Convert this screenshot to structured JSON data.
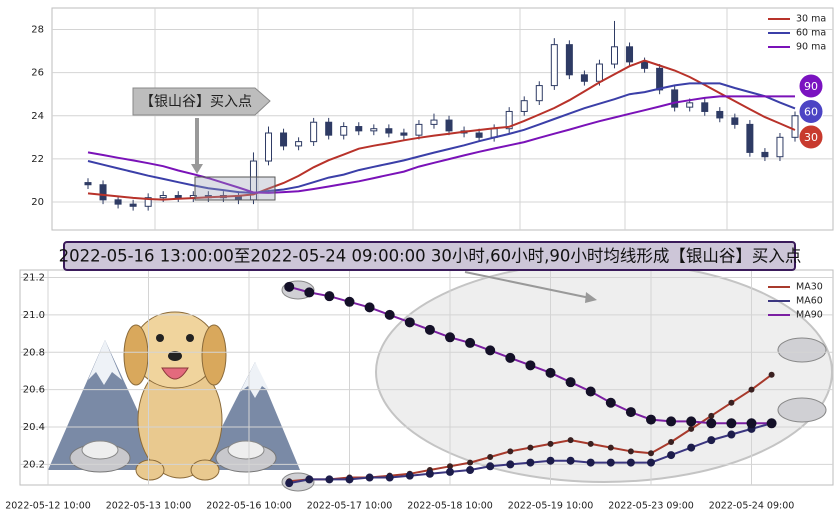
{
  "chart_data": [
    {
      "type": "candlestick",
      "annotation": "【银山谷】买入点",
      "color": "#2e3b64",
      "open": [
        20.9,
        20.8,
        20.1,
        19.9,
        19.8,
        20.2,
        20.3,
        20.2,
        20.3,
        20.2,
        20.3,
        20.1,
        21.9,
        23.2,
        22.6,
        22.8,
        23.7,
        23.1,
        23.5,
        23.3,
        23.4,
        23.2,
        23.1,
        23.6,
        23.8,
        23.3,
        23.2,
        23.0,
        23.4,
        24.2,
        24.7,
        25.4,
        27.3,
        25.9,
        25.6,
        26.4,
        27.2,
        26.5,
        26.2,
        25.2,
        24.4,
        24.6,
        24.2,
        23.9,
        23.6,
        22.3,
        22.1,
        23.0
      ],
      "high": [
        21.1,
        21.0,
        20.3,
        20.1,
        20.4,
        20.5,
        20.5,
        20.5,
        20.5,
        20.5,
        20.5,
        22.3,
        23.5,
        23.4,
        23.0,
        23.9,
        23.9,
        23.7,
        23.7,
        23.6,
        23.6,
        23.4,
        23.8,
        24.1,
        24.0,
        23.5,
        23.4,
        23.6,
        24.4,
        24.9,
        25.6,
        27.6,
        27.5,
        26.1,
        26.6,
        28.4,
        27.4,
        26.7,
        26.4,
        25.4,
        24.8,
        24.8,
        24.4,
        24.1,
        23.8,
        22.5,
        23.2,
        24.2
      ],
      "low": [
        20.6,
        19.9,
        19.7,
        19.6,
        19.6,
        20.0,
        20.0,
        20.0,
        20.0,
        20.0,
        19.9,
        19.9,
        21.7,
        22.4,
        22.4,
        22.6,
        22.9,
        22.9,
        23.1,
        23.1,
        23.0,
        22.9,
        22.9,
        23.4,
        23.1,
        23.0,
        22.8,
        22.8,
        23.2,
        24.0,
        24.5,
        25.2,
        25.7,
        25.4,
        25.4,
        26.2,
        26.3,
        26.0,
        25.0,
        24.2,
        24.2,
        24.0,
        23.7,
        23.4,
        22.1,
        21.9,
        21.9,
        22.8
      ],
      "close": [
        20.8,
        20.1,
        19.9,
        19.8,
        20.2,
        20.3,
        20.2,
        20.3,
        20.2,
        20.3,
        20.1,
        21.9,
        23.2,
        22.6,
        22.8,
        23.7,
        23.1,
        23.5,
        23.3,
        23.4,
        23.2,
        23.1,
        23.6,
        23.8,
        23.3,
        23.2,
        23.0,
        23.4,
        24.2,
        24.7,
        25.4,
        27.3,
        25.9,
        25.6,
        26.4,
        27.2,
        26.5,
        26.2,
        25.2,
        24.4,
        24.6,
        24.2,
        23.9,
        23.6,
        22.3,
        22.1,
        23.0,
        24.0
      ],
      "series": [
        {
          "name": "30 ma",
          "color": "#b8322a",
          "values": [
            20.4,
            20.33,
            20.26,
            20.19,
            20.14,
            20.11,
            20.15,
            20.18,
            20.22,
            20.25,
            20.28,
            20.35,
            20.62,
            20.88,
            21.21,
            21.61,
            21.94,
            22.2,
            22.47,
            22.61,
            22.73,
            22.86,
            22.98,
            23.08,
            23.17,
            23.26,
            23.34,
            23.42,
            23.49,
            23.76,
            24.06,
            24.36,
            24.72,
            25.13,
            25.55,
            25.93,
            26.3,
            26.56,
            26.33,
            26.1,
            25.8,
            25.43,
            25.05,
            24.68,
            24.3,
            23.94,
            23.64,
            23.34
          ]
        },
        {
          "name": "60 ma",
          "color": "#3b3fa8",
          "values": [
            21.9,
            21.73,
            21.56,
            21.39,
            21.22,
            21.07,
            20.92,
            20.77,
            20.64,
            20.55,
            20.46,
            20.42,
            20.51,
            20.58,
            20.71,
            20.92,
            21.13,
            21.27,
            21.48,
            21.63,
            21.78,
            21.93,
            22.11,
            22.29,
            22.46,
            22.63,
            22.82,
            22.99,
            23.16,
            23.35,
            23.6,
            23.85,
            24.1,
            24.35,
            24.56,
            24.77,
            25.0,
            25.1,
            25.26,
            25.41,
            25.5,
            25.5,
            25.5,
            25.29,
            25.1,
            24.91,
            24.61,
            24.34
          ]
        },
        {
          "name": "90 ma",
          "color": "#7a12b8",
          "values": [
            22.3,
            22.18,
            22.05,
            21.93,
            21.8,
            21.66,
            21.46,
            21.29,
            21.11,
            20.89,
            20.67,
            20.44,
            20.42,
            20.46,
            20.5,
            20.6,
            20.72,
            20.84,
            20.96,
            21.11,
            21.26,
            21.41,
            21.64,
            21.82,
            21.99,
            22.16,
            22.33,
            22.48,
            22.63,
            22.78,
            22.98,
            23.17,
            23.36,
            23.56,
            23.75,
            23.92,
            24.09,
            24.26,
            24.43,
            24.61,
            24.72,
            24.83,
            24.9,
            24.9,
            24.9,
            24.9,
            24.9,
            24.9
          ]
        }
      ],
      "badges": [
        {
          "label": "90",
          "color": "#7a12c0"
        },
        {
          "label": "60",
          "color": "#4c44c4"
        },
        {
          "label": "30",
          "color": "#c83a2e"
        }
      ],
      "ylim": [
        18.7,
        29.0
      ],
      "yticks": [
        20,
        22,
        24,
        26,
        28
      ],
      "grid": true
    },
    {
      "type": "line",
      "title": "2022-05-16 13:00:00至2022-05-24 09:00:00 30小时,60小时,90小时均线形成【银山谷】买入点",
      "categories": [
        "2022-05-12 10:00",
        null,
        null,
        null,
        null,
        "2022-05-13 10:00",
        null,
        null,
        null,
        null,
        "2022-05-16 10:00",
        null,
        null,
        null,
        null,
        "2022-05-17 10:00",
        null,
        null,
        null,
        null,
        "2022-05-18 10:00",
        null,
        null,
        null,
        null,
        "2022-05-19 10:00",
        null,
        null,
        null,
        null,
        "2022-05-23 09:00",
        null,
        null,
        null,
        null,
        "2022-05-24 09:00",
        null
      ],
      "series": [
        {
          "name": "MA30",
          "color": "#a83a2c",
          "values": [
            null,
            null,
            null,
            null,
            null,
            null,
            null,
            null,
            null,
            null,
            null,
            null,
            20.11,
            20.12,
            20.12,
            20.13,
            20.13,
            20.14,
            20.15,
            20.17,
            20.19,
            20.21,
            20.24,
            20.27,
            20.29,
            20.31,
            20.33,
            20.31,
            20.29,
            20.27,
            20.26,
            20.32,
            20.39,
            20.46,
            20.53,
            20.6,
            20.68
          ]
        },
        {
          "name": "MA60",
          "color": "#3b3680",
          "values": [
            null,
            null,
            null,
            null,
            null,
            null,
            null,
            null,
            null,
            null,
            null,
            null,
            20.1,
            20.12,
            20.12,
            20.12,
            20.13,
            20.13,
            20.14,
            20.15,
            20.16,
            20.17,
            20.19,
            20.2,
            20.21,
            20.22,
            20.22,
            20.21,
            20.21,
            20.21,
            20.21,
            20.25,
            20.29,
            20.33,
            20.36,
            20.39,
            20.42
          ]
        },
        {
          "name": "MA90",
          "color": "#7b1fa2",
          "values": [
            null,
            null,
            null,
            null,
            null,
            null,
            null,
            null,
            null,
            null,
            null,
            null,
            21.15,
            21.12,
            21.1,
            21.07,
            21.04,
            21.0,
            20.96,
            20.92,
            20.88,
            20.85,
            20.81,
            20.77,
            20.73,
            20.69,
            20.64,
            20.59,
            20.53,
            20.48,
            20.44,
            20.43,
            20.43,
            20.42,
            20.42,
            20.42,
            20.42
          ]
        }
      ],
      "ylim": [
        20.09,
        21.24
      ],
      "yticks": [
        20.2,
        20.4,
        20.6,
        20.8,
        {
          "value": 21,
          "label": "21.0"
        },
        21.2
      ],
      "grid": true
    }
  ]
}
